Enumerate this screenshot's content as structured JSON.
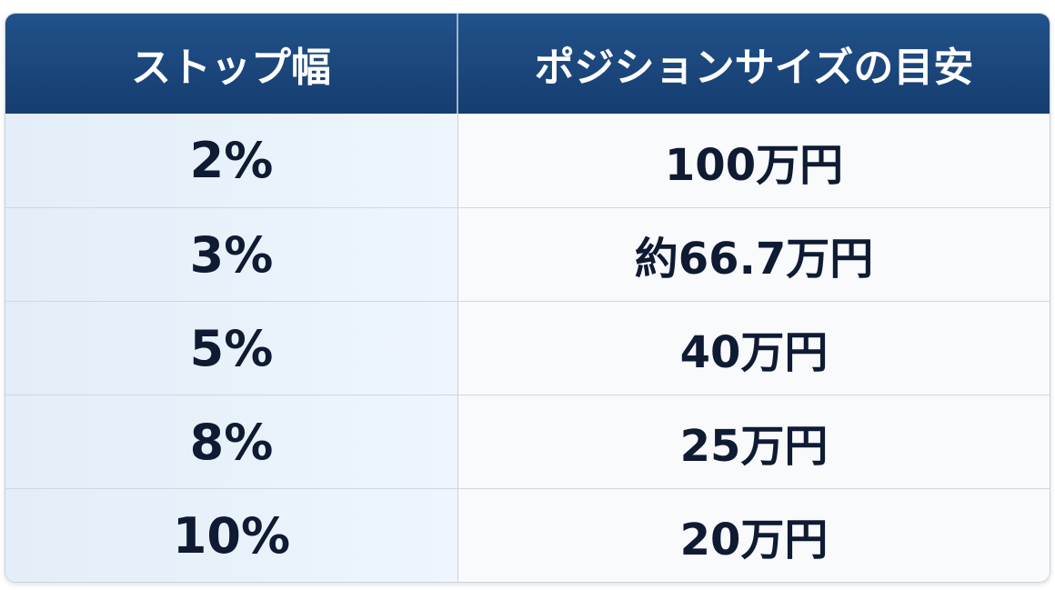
{
  "table": {
    "header": [
      "ストップ幅",
      "ポジションサイズの目安"
    ],
    "rows": [
      [
        "2%",
        "100万円"
      ],
      [
        "3%",
        "約66.7万円"
      ],
      [
        "5%",
        "40万円"
      ],
      [
        "8%",
        "25万円"
      ],
      [
        "10%",
        "20万円"
      ]
    ]
  }
}
